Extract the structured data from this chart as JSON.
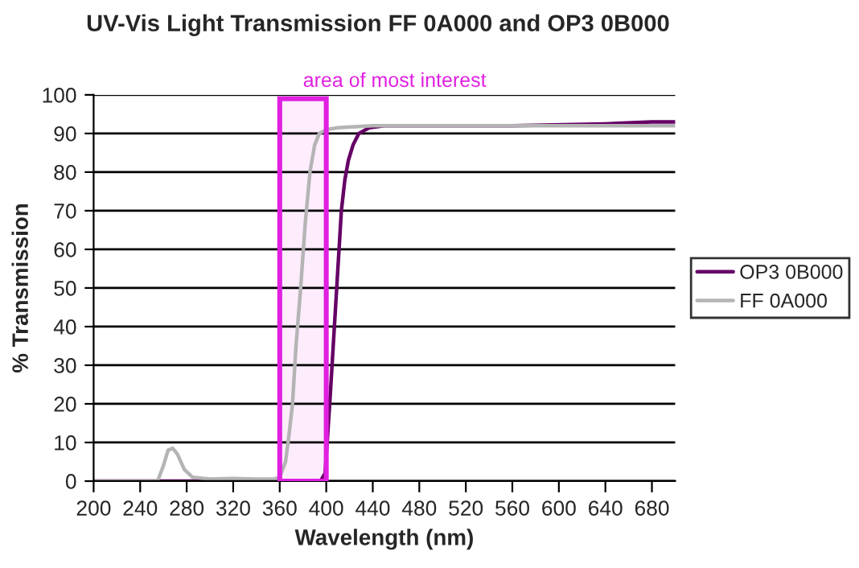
{
  "chart_data": {
    "type": "line",
    "title": "UV-Vis Light Transmission FF 0A000 and OP3 0B000",
    "xlabel": "Wavelength (nm)",
    "ylabel": "% Transmission",
    "xlim": [
      200,
      700
    ],
    "xticks": [
      200,
      240,
      280,
      320,
      360,
      400,
      440,
      480,
      520,
      560,
      600,
      640,
      680
    ],
    "ylim": [
      0,
      100
    ],
    "yticks": [
      0,
      10,
      20,
      30,
      40,
      50,
      60,
      70,
      80,
      90,
      100
    ],
    "grid": "y",
    "legend": "right",
    "marker": "none",
    "line_style": "solid",
    "bands": [
      {
        "axis": "x",
        "from": 360,
        "to": 400,
        "label": "area of most interest",
        "color": "#e020e0"
      }
    ],
    "series": [
      {
        "name": "OP3 0B000",
        "color": "#660066",
        "x": [
          200,
          395,
          399,
          403,
          406,
          409,
          413,
          416,
          419,
          423,
          428,
          437,
          450,
          480,
          560,
          640,
          680,
          700
        ],
        "values": [
          0,
          0,
          2,
          20,
          35,
          50,
          70,
          78,
          83,
          87,
          90,
          91.5,
          92,
          92,
          92,
          92.5,
          93,
          93
        ]
      },
      {
        "name": "FF 0A000",
        "color": "#b4b4b4",
        "x": [
          200,
          255,
          260,
          264,
          268,
          272,
          278,
          285,
          300,
          320,
          340,
          355,
          360,
          365,
          368,
          371,
          374,
          378,
          382,
          386,
          390,
          394,
          400,
          410,
          440,
          500,
          600,
          700
        ],
        "values": [
          0,
          0,
          4,
          8,
          8.5,
          7,
          3,
          1,
          0.5,
          0.7,
          0.5,
          0.5,
          1,
          5,
          12,
          20,
          35,
          50,
          67,
          80,
          87,
          90,
          91,
          91.5,
          92,
          92,
          92,
          92
        ]
      }
    ]
  }
}
